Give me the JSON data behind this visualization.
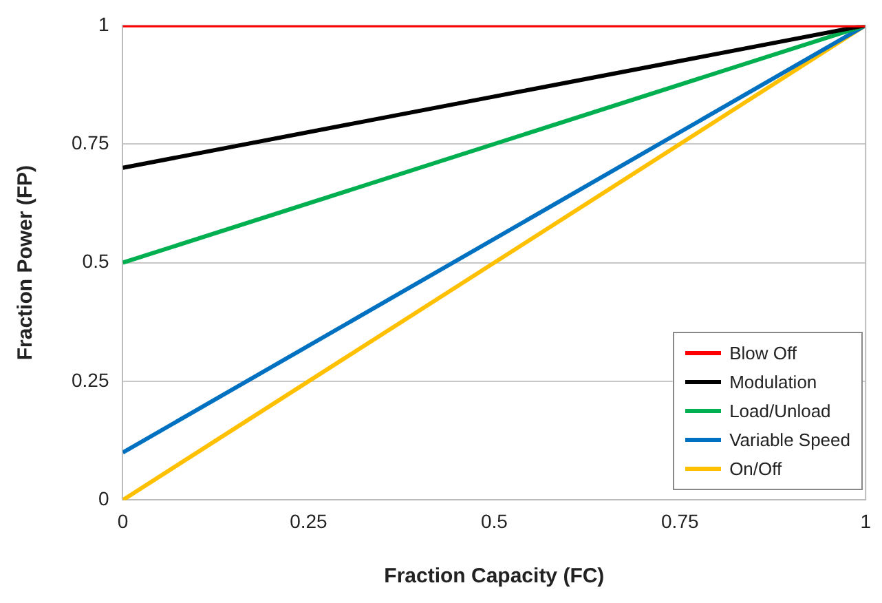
{
  "chart_data": {
    "type": "line",
    "xlabel": "Fraction Capacity (FC)",
    "ylabel": "Fraction Power (FP)",
    "x": [
      0,
      1
    ],
    "series": [
      {
        "name": "Blow Off",
        "color": "#ff0000",
        "values": [
          1,
          1
        ]
      },
      {
        "name": "Modulation",
        "color": "#000000",
        "values": [
          0.7,
          1
        ]
      },
      {
        "name": "Load/Unload",
        "color": "#00b050",
        "values": [
          0.5,
          1
        ]
      },
      {
        "name": "Variable Speed",
        "color": "#0070c0",
        "values": [
          0.1,
          1
        ]
      },
      {
        "name": "On/Off",
        "color": "#ffc000",
        "values": [
          0,
          1
        ]
      }
    ],
    "xlim": [
      0,
      1
    ],
    "xticks": [
      0,
      0.25,
      0.5,
      0.75,
      1
    ],
    "ylim": [
      0,
      1
    ],
    "yticks": [
      0,
      0.25,
      0.5,
      0.75,
      1
    ],
    "grid": "y",
    "legend": "bottom right",
    "marker": "none",
    "line_style": "solid"
  }
}
